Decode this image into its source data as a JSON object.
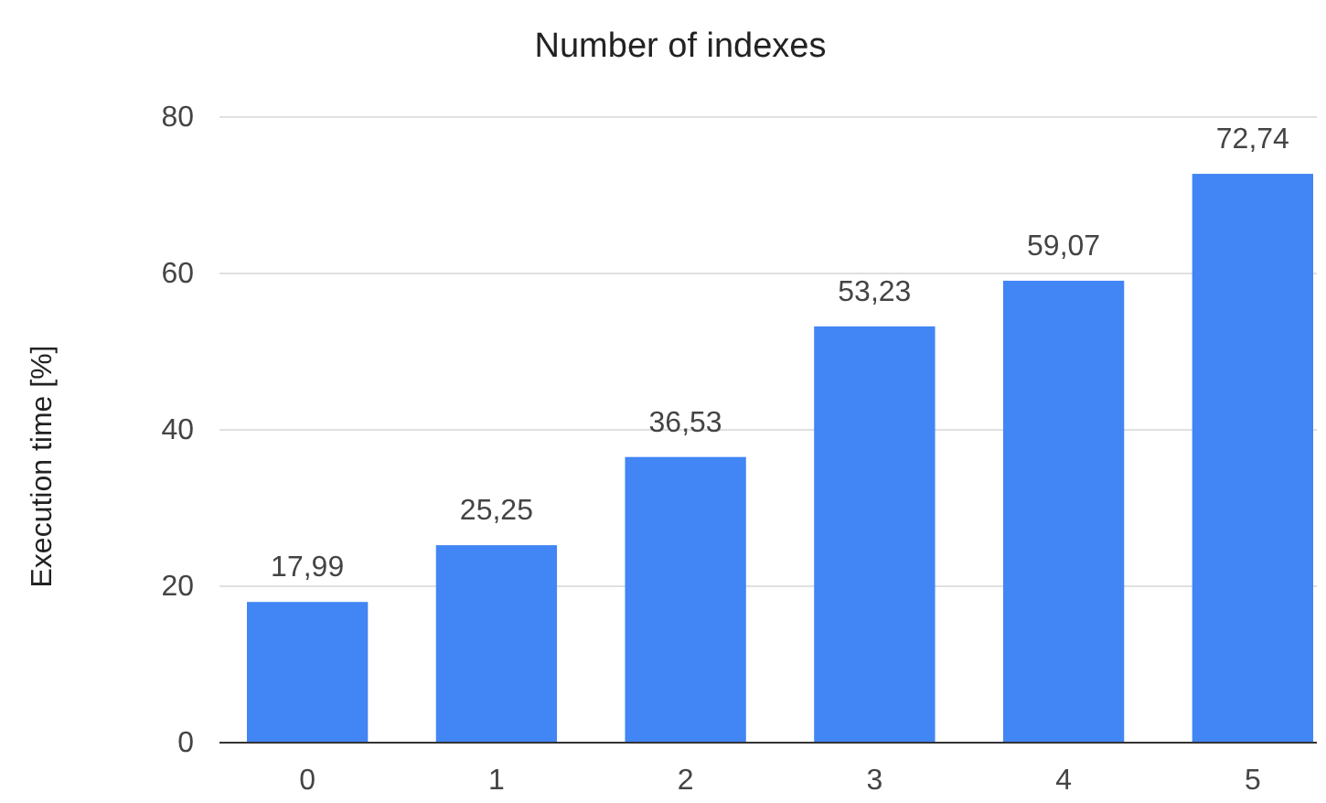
{
  "chart_data": {
    "type": "bar",
    "title": "Number of indexes",
    "ylabel": "Execution time [%]",
    "categories": [
      "0",
      "1",
      "2",
      "3",
      "4",
      "5"
    ],
    "values": [
      17.99,
      25.25,
      36.53,
      53.23,
      59.07,
      72.74
    ],
    "value_labels": [
      "17,99",
      "25,25",
      "36,53",
      "53,23",
      "59,07",
      "72,74"
    ],
    "color": "#4285f4",
    "ylim": [
      0,
      80
    ],
    "yticks": [
      0,
      20,
      40,
      60,
      80
    ],
    "grid": "y"
  }
}
